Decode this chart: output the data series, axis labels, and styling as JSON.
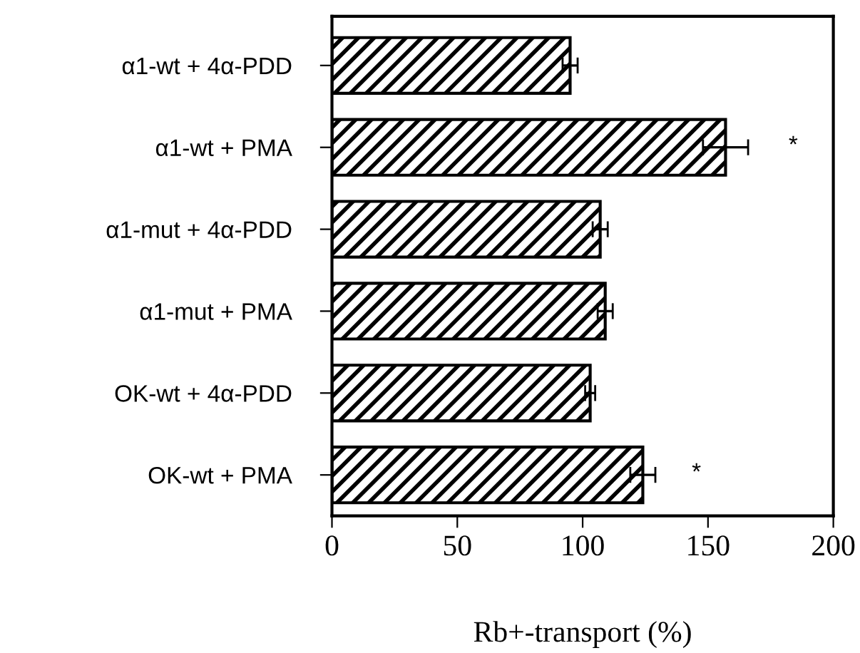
{
  "chart_data": {
    "type": "bar",
    "orientation": "horizontal",
    "xlabel": "Rb+-transport (%)",
    "categories": [
      "α1-wt + 4α-PDD",
      "α1-wt + PMA",
      "α1-mut + 4α-PDD",
      "α1-mut + PMA",
      "OK-wt + 4α-PDD",
      "OK-wt + PMA"
    ],
    "values": [
      95,
      157,
      107,
      109,
      103,
      124
    ],
    "errors": [
      3,
      9,
      3,
      3,
      2,
      5
    ],
    "color": "#000000",
    "xlim": [
      0,
      200
    ],
    "xticks": [
      0,
      50,
      100,
      150,
      200
    ],
    "grid": false,
    "annotations": [
      "*",
      "*"
    ]
  }
}
